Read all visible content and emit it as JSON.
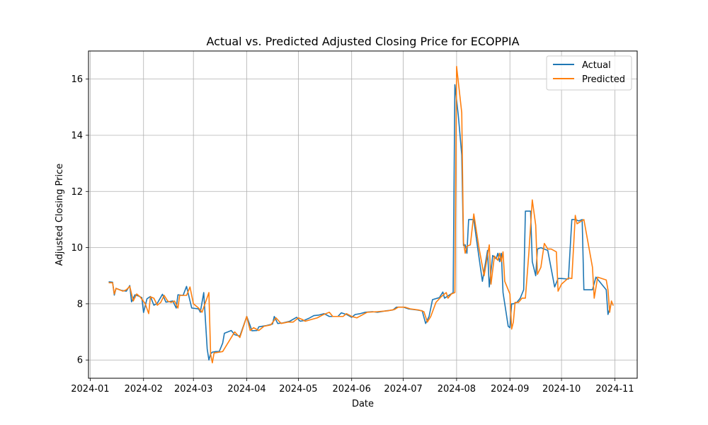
{
  "chart_data": {
    "type": "line",
    "title": "Actual vs. Predicted Adjusted Closing Price for ECOPPIA",
    "xlabel": "Date",
    "ylabel": "Adjusted Closing Price",
    "x_tick_labels": [
      "2024-01",
      "2024-02",
      "2024-03",
      "2024-04",
      "2024-05",
      "2024-06",
      "2024-07",
      "2024-08",
      "2024-09",
      "2024-10",
      "2024-11"
    ],
    "x_tick_dates": [
      "2024-01-01",
      "2024-02-01",
      "2024-03-01",
      "2024-04-01",
      "2024-05-01",
      "2024-06-01",
      "2024-07-01",
      "2024-08-01",
      "2024-09-01",
      "2024-10-01",
      "2024-11-01"
    ],
    "y_ticks": [
      6,
      8,
      10,
      12,
      14,
      16
    ],
    "xlim": [
      "2023-12-31",
      "2024-11-14"
    ],
    "ylim": [
      5.35,
      17.0
    ],
    "grid": true,
    "legend_position": "upper right",
    "series": [
      {
        "name": "Actual",
        "color": "#1f77b4",
        "points": [
          [
            "2024-01-12",
            8.78
          ],
          [
            "2024-01-14",
            8.77
          ],
          [
            "2024-01-15",
            8.31
          ],
          [
            "2024-01-16",
            8.55
          ],
          [
            "2024-01-19",
            8.48
          ],
          [
            "2024-01-22",
            8.45
          ],
          [
            "2024-01-24",
            8.65
          ],
          [
            "2024-01-25",
            8.07
          ],
          [
            "2024-01-27",
            8.32
          ],
          [
            "2024-01-29",
            8.28
          ],
          [
            "2024-01-31",
            8.22
          ],
          [
            "2024-02-01",
            7.69
          ],
          [
            "2024-02-03",
            8.18
          ],
          [
            "2024-02-05",
            8.26
          ],
          [
            "2024-02-07",
            7.95
          ],
          [
            "2024-02-09",
            8.02
          ],
          [
            "2024-02-12",
            8.34
          ],
          [
            "2024-02-14",
            8.06
          ],
          [
            "2024-02-16",
            8.08
          ],
          [
            "2024-02-18",
            8.1
          ],
          [
            "2024-02-20",
            7.85
          ],
          [
            "2024-02-21",
            8.32
          ],
          [
            "2024-02-24",
            8.3
          ],
          [
            "2024-02-26",
            8.62
          ],
          [
            "2024-02-29",
            7.85
          ],
          [
            "2024-03-04",
            7.82
          ],
          [
            "2024-03-05",
            7.7
          ],
          [
            "2024-03-07",
            8.4
          ],
          [
            "2024-03-09",
            6.4
          ],
          [
            "2024-03-10",
            6.0
          ],
          [
            "2024-03-11",
            6.22
          ],
          [
            "2024-03-12",
            6.28
          ],
          [
            "2024-03-14",
            6.3
          ],
          [
            "2024-03-16",
            6.3
          ],
          [
            "2024-03-18",
            6.6
          ],
          [
            "2024-03-19",
            6.95
          ],
          [
            "2024-03-23",
            7.05
          ],
          [
            "2024-03-25",
            6.9
          ],
          [
            "2024-03-28",
            6.85
          ],
          [
            "2024-04-01",
            7.55
          ],
          [
            "2024-04-03",
            7.22
          ],
          [
            "2024-04-04",
            7.04
          ],
          [
            "2024-04-07",
            7.05
          ],
          [
            "2024-04-08",
            7.18
          ],
          [
            "2024-04-12",
            7.22
          ],
          [
            "2024-04-14",
            7.25
          ],
          [
            "2024-04-16",
            7.28
          ],
          [
            "2024-04-17",
            7.55
          ],
          [
            "2024-04-19",
            7.3
          ],
          [
            "2024-04-22",
            7.32
          ],
          [
            "2024-04-26",
            7.38
          ],
          [
            "2024-04-30",
            7.52
          ],
          [
            "2024-05-02",
            7.38
          ],
          [
            "2024-05-04",
            7.4
          ],
          [
            "2024-05-07",
            7.48
          ],
          [
            "2024-05-10",
            7.58
          ],
          [
            "2024-05-13",
            7.6
          ],
          [
            "2024-05-16",
            7.65
          ],
          [
            "2024-05-19",
            7.55
          ],
          [
            "2024-05-24",
            7.55
          ],
          [
            "2024-05-26",
            7.68
          ],
          [
            "2024-05-29",
            7.62
          ],
          [
            "2024-06-01",
            7.52
          ],
          [
            "2024-06-03",
            7.62
          ],
          [
            "2024-06-06",
            7.65
          ],
          [
            "2024-06-09",
            7.7
          ],
          [
            "2024-06-13",
            7.72
          ],
          [
            "2024-06-16",
            7.7
          ],
          [
            "2024-06-21",
            7.75
          ],
          [
            "2024-06-25",
            7.78
          ],
          [
            "2024-06-27",
            7.88
          ],
          [
            "2024-07-01",
            7.88
          ],
          [
            "2024-07-04",
            7.82
          ],
          [
            "2024-07-09",
            7.78
          ],
          [
            "2024-07-12",
            7.75
          ],
          [
            "2024-07-14",
            7.3
          ],
          [
            "2024-07-16",
            7.55
          ],
          [
            "2024-07-18",
            8.15
          ],
          [
            "2024-07-22",
            8.22
          ],
          [
            "2024-07-24",
            8.42
          ],
          [
            "2024-07-25",
            8.2
          ],
          [
            "2024-07-28",
            8.32
          ],
          [
            "2024-07-30",
            8.4
          ],
          [
            "2024-07-31",
            15.8
          ],
          [
            "2024-08-02",
            14.7
          ],
          [
            "2024-08-04",
            13.3
          ],
          [
            "2024-08-05",
            10.08
          ],
          [
            "2024-08-06",
            10.1
          ],
          [
            "2024-08-07",
            9.8
          ],
          [
            "2024-08-08",
            11.0
          ],
          [
            "2024-08-10",
            11.0
          ],
          [
            "2024-08-11",
            11.0
          ],
          [
            "2024-08-13",
            10.1
          ],
          [
            "2024-08-16",
            8.8
          ],
          [
            "2024-08-19",
            9.9
          ],
          [
            "2024-08-20",
            8.6
          ],
          [
            "2024-08-22",
            9.72
          ],
          [
            "2024-08-24",
            9.6
          ],
          [
            "2024-08-25",
            9.8
          ],
          [
            "2024-08-26",
            9.5
          ],
          [
            "2024-08-27",
            9.8
          ],
          [
            "2024-08-28",
            8.4
          ],
          [
            "2024-08-31",
            7.2
          ],
          [
            "2024-09-01",
            7.15
          ],
          [
            "2024-09-02",
            8.0
          ],
          [
            "2024-09-03",
            8.0
          ],
          [
            "2024-09-05",
            8.05
          ],
          [
            "2024-09-07",
            8.2
          ],
          [
            "2024-09-09",
            8.5
          ],
          [
            "2024-09-10",
            11.3
          ],
          [
            "2024-09-13",
            11.3
          ],
          [
            "2024-09-14",
            9.5
          ],
          [
            "2024-09-16",
            9.0
          ],
          [
            "2024-09-17",
            9.95
          ],
          [
            "2024-09-19",
            10.0
          ],
          [
            "2024-09-21",
            9.95
          ],
          [
            "2024-09-23",
            9.9
          ],
          [
            "2024-09-27",
            8.6
          ],
          [
            "2024-09-29",
            8.9
          ],
          [
            "2024-10-01",
            8.9
          ],
          [
            "2024-10-05",
            8.88
          ],
          [
            "2024-10-07",
            11.0
          ],
          [
            "2024-10-09",
            11.0
          ],
          [
            "2024-10-11",
            10.95
          ],
          [
            "2024-10-13",
            11.0
          ],
          [
            "2024-10-14",
            8.5
          ],
          [
            "2024-10-19",
            8.5
          ],
          [
            "2024-10-21",
            8.95
          ],
          [
            "2024-10-27",
            8.5
          ],
          [
            "2024-10-28",
            7.62
          ],
          [
            "2024-10-30",
            8.02
          ]
        ]
      },
      {
        "name": "Predicted",
        "color": "#ff7f0e",
        "points": [
          [
            "2024-01-12",
            8.75
          ],
          [
            "2024-01-14",
            8.75
          ],
          [
            "2024-01-15",
            8.35
          ],
          [
            "2024-01-16",
            8.55
          ],
          [
            "2024-01-20",
            8.45
          ],
          [
            "2024-01-22",
            8.5
          ],
          [
            "2024-01-24",
            8.62
          ],
          [
            "2024-01-26",
            8.1
          ],
          [
            "2024-01-28",
            8.35
          ],
          [
            "2024-01-30",
            8.25
          ],
          [
            "2024-02-02",
            8.0
          ],
          [
            "2024-02-04",
            7.65
          ],
          [
            "2024-02-05",
            8.25
          ],
          [
            "2024-02-07",
            8.2
          ],
          [
            "2024-02-09",
            7.95
          ],
          [
            "2024-02-11",
            8.05
          ],
          [
            "2024-02-13",
            8.3
          ],
          [
            "2024-02-15",
            8.1
          ],
          [
            "2024-02-17",
            8.05
          ],
          [
            "2024-02-19",
            8.1
          ],
          [
            "2024-02-21",
            7.85
          ],
          [
            "2024-02-22",
            8.3
          ],
          [
            "2024-02-26",
            8.3
          ],
          [
            "2024-02-28",
            8.6
          ],
          [
            "2024-03-01",
            8.0
          ],
          [
            "2024-03-04",
            7.85
          ],
          [
            "2024-03-06",
            7.7
          ],
          [
            "2024-03-10",
            8.4
          ],
          [
            "2024-03-11",
            6.2
          ],
          [
            "2024-03-12",
            5.9
          ],
          [
            "2024-03-13",
            6.25
          ],
          [
            "2024-03-18",
            6.3
          ],
          [
            "2024-03-21",
            6.6
          ],
          [
            "2024-03-25",
            7.0
          ],
          [
            "2024-03-28",
            6.8
          ],
          [
            "2024-04-01",
            7.55
          ],
          [
            "2024-04-03",
            7.05
          ],
          [
            "2024-04-05",
            7.15
          ],
          [
            "2024-04-08",
            7.05
          ],
          [
            "2024-04-11",
            7.2
          ],
          [
            "2024-04-15",
            7.25
          ],
          [
            "2024-04-18",
            7.5
          ],
          [
            "2024-04-21",
            7.3
          ],
          [
            "2024-04-25",
            7.35
          ],
          [
            "2024-04-28",
            7.35
          ],
          [
            "2024-05-01",
            7.5
          ],
          [
            "2024-05-03",
            7.45
          ],
          [
            "2024-05-05",
            7.38
          ],
          [
            "2024-05-09",
            7.45
          ],
          [
            "2024-05-12",
            7.5
          ],
          [
            "2024-05-15",
            7.6
          ],
          [
            "2024-05-19",
            7.7
          ],
          [
            "2024-05-21",
            7.55
          ],
          [
            "2024-05-27",
            7.55
          ],
          [
            "2024-05-29",
            7.65
          ],
          [
            "2024-06-01",
            7.55
          ],
          [
            "2024-06-04",
            7.5
          ],
          [
            "2024-06-07",
            7.6
          ],
          [
            "2024-06-10",
            7.7
          ],
          [
            "2024-06-16",
            7.72
          ],
          [
            "2024-06-22",
            7.75
          ],
          [
            "2024-06-26",
            7.8
          ],
          [
            "2024-06-28",
            7.88
          ],
          [
            "2024-07-02",
            7.88
          ],
          [
            "2024-07-05",
            7.82
          ],
          [
            "2024-07-10",
            7.78
          ],
          [
            "2024-07-13",
            7.72
          ],
          [
            "2024-07-15",
            7.35
          ],
          [
            "2024-07-17",
            7.55
          ],
          [
            "2024-07-20",
            8.05
          ],
          [
            "2024-07-23",
            8.25
          ],
          [
            "2024-07-26",
            8.4
          ],
          [
            "2024-07-27",
            8.2
          ],
          [
            "2024-07-29",
            8.35
          ],
          [
            "2024-07-31",
            8.4
          ],
          [
            "2024-08-01",
            16.45
          ],
          [
            "2024-08-04",
            14.8
          ],
          [
            "2024-08-05",
            10.2
          ],
          [
            "2024-08-06",
            9.8
          ],
          [
            "2024-08-07",
            10.05
          ],
          [
            "2024-08-09",
            10.1
          ],
          [
            "2024-08-11",
            11.2
          ],
          [
            "2024-08-14",
            10.0
          ],
          [
            "2024-08-17",
            9.0
          ],
          [
            "2024-08-20",
            10.1
          ],
          [
            "2024-08-21",
            8.7
          ],
          [
            "2024-08-23",
            9.7
          ],
          [
            "2024-08-25",
            9.55
          ],
          [
            "2024-08-26",
            9.8
          ],
          [
            "2024-08-27",
            9.5
          ],
          [
            "2024-08-28",
            9.85
          ],
          [
            "2024-08-29",
            8.8
          ],
          [
            "2024-09-01",
            8.35
          ],
          [
            "2024-09-02",
            7.1
          ],
          [
            "2024-09-03",
            7.35
          ],
          [
            "2024-09-04",
            8.05
          ],
          [
            "2024-09-06",
            8.05
          ],
          [
            "2024-09-08",
            8.2
          ],
          [
            "2024-09-10",
            8.2
          ],
          [
            "2024-09-12",
            9.8
          ],
          [
            "2024-09-14",
            11.7
          ],
          [
            "2024-09-16",
            10.8
          ],
          [
            "2024-09-17",
            9.05
          ],
          [
            "2024-09-19",
            9.3
          ],
          [
            "2024-09-21",
            10.15
          ],
          [
            "2024-09-23",
            9.95
          ],
          [
            "2024-09-25",
            9.95
          ],
          [
            "2024-09-28",
            9.85
          ],
          [
            "2024-09-29",
            8.45
          ],
          [
            "2024-10-01",
            8.7
          ],
          [
            "2024-10-05",
            8.92
          ],
          [
            "2024-10-07",
            8.9
          ],
          [
            "2024-10-09",
            11.15
          ],
          [
            "2024-10-10",
            10.85
          ],
          [
            "2024-10-14",
            11.0
          ],
          [
            "2024-10-19",
            9.3
          ],
          [
            "2024-10-20",
            8.2
          ],
          [
            "2024-10-22",
            8.95
          ],
          [
            "2024-10-27",
            8.85
          ],
          [
            "2024-10-28",
            8.5
          ],
          [
            "2024-10-29",
            7.7
          ],
          [
            "2024-10-30",
            8.1
          ],
          [
            "2024-10-31",
            7.95
          ]
        ]
      }
    ]
  }
}
